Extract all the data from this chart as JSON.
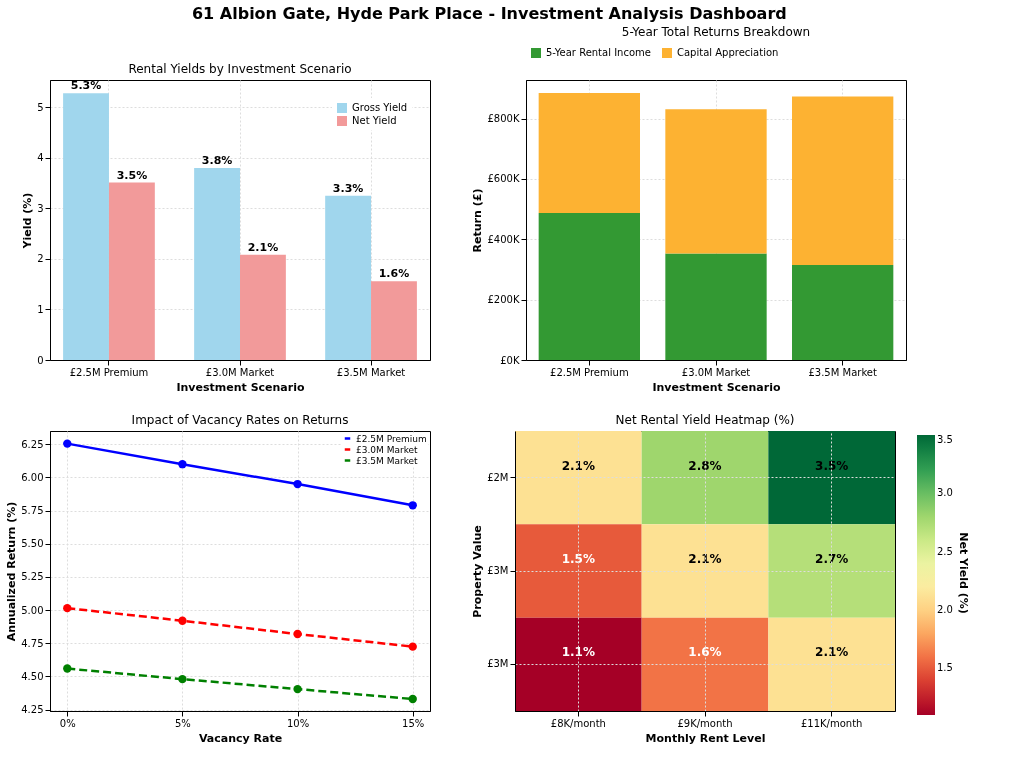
{
  "chart_data": [
    {
      "type": "bar",
      "title": "Rental Yields by Investment Scenario",
      "xlabel": "Investment Scenario",
      "ylabel": "Yield (%)",
      "annotations": [
        "61 Albion Gate, Hyde Park Place - Investment Analysis Dashboard"
      ],
      "categories": [
        "£2.5M Premium",
        "£3.0M Market",
        "£3.5M Market"
      ],
      "series": [
        {
          "name": "Gross Yield",
          "color": "#a0d6ed",
          "values": [
            5.28,
            3.8,
            3.25
          ],
          "value_labels": [
            "5.3%",
            "3.8%",
            "3.3%"
          ]
        },
        {
          "name": "Net Yield",
          "color": "#f29a9a",
          "values": [
            3.51,
            2.08,
            1.56
          ],
          "value_labels": [
            "3.5%",
            "2.1%",
            "1.6%"
          ]
        }
      ],
      "ylim": [
        0,
        5.54
      ],
      "yticks": [
        0,
        1,
        2,
        3,
        4,
        5
      ],
      "grid": true,
      "legend": "top right"
    },
    {
      "type": "bar",
      "stacked": true,
      "title": "5-Year Total Returns Breakdown",
      "xlabel": "Investment Scenario",
      "ylabel": "Return (£)",
      "categories": [
        "£2.5M Premium",
        "£3.0M Market",
        "£3.5M Market"
      ],
      "series": [
        {
          "name": "5-Year Rental Income",
          "color": "#339933",
          "values": [
            487000,
            353000,
            315000
          ]
        },
        {
          "name": "Capital Appreciation",
          "color": "#fdb232",
          "values": [
            398000,
            478000,
            558000
          ]
        }
      ],
      "ylim": [
        0,
        928000
      ],
      "yticks": [
        {
          "value": 0,
          "label": "£0K"
        },
        {
          "value": 200000,
          "label": "£200K"
        },
        {
          "value": 400000,
          "label": "£400K"
        },
        {
          "value": 600000,
          "label": "£600K"
        },
        {
          "value": 800000,
          "label": "£800K"
        }
      ],
      "grid": true,
      "legend": "top"
    },
    {
      "type": "line",
      "title": "Impact of Vacancy Rates on Returns",
      "xlabel": "Vacancy Rate",
      "ylabel": "Annualized Return (%)",
      "x": [
        0,
        5,
        10,
        15
      ],
      "series": [
        {
          "name": "£2.5M Premium",
          "color": "#0000ff",
          "line_style": "solid",
          "values": [
            6.255,
            6.1,
            5.95,
            5.79
          ]
        },
        {
          "name": "£3.0M Market",
          "color": "#ff0000",
          "line_style": "dashed",
          "values": [
            5.015,
            4.92,
            4.82,
            4.725
          ]
        },
        {
          "name": "£3.5M Market",
          "color": "#008000",
          "line_style": "dashed",
          "values": [
            4.56,
            4.48,
            4.405,
            4.33
          ]
        }
      ],
      "xlim": [
        -0.75,
        15.75
      ],
      "xticks": [
        {
          "value": 0,
          "label": "0%"
        },
        {
          "value": 5,
          "label": "5%"
        },
        {
          "value": 10,
          "label": "10%"
        },
        {
          "value": 15,
          "label": "15%"
        }
      ],
      "ylim": [
        4.24,
        6.35
      ],
      "yticks": [
        {
          "value": 4.25,
          "label": "4.25"
        },
        {
          "value": 4.5,
          "label": "4.50"
        },
        {
          "value": 4.75,
          "label": "4.75"
        },
        {
          "value": 5,
          "label": "5.00"
        },
        {
          "value": 5.25,
          "label": "5.25"
        },
        {
          "value": 5.5,
          "label": "5.50"
        },
        {
          "value": 5.75,
          "label": "5.75"
        },
        {
          "value": 6,
          "label": "6.00"
        },
        {
          "value": 6.25,
          "label": "6.25"
        }
      ],
      "grid": true,
      "legend": "top right",
      "marker": "circle"
    },
    {
      "type": "heatmap",
      "title": "Net Rental Yield Heatmap (%)",
      "xlabel": "Monthly Rent Level",
      "ylabel": "Property Value",
      "clabel": "Net Yield (%)",
      "categories": [
        "£8K/month",
        "£9K/month",
        "£11K/month"
      ],
      "y_categories": [
        "£2M",
        "£3M",
        "£3M"
      ],
      "cells": [
        [
          2.1,
          2.8,
          3.5
        ],
        [
          1.5,
          2.1,
          2.7
        ],
        [
          1.1,
          1.6,
          2.1
        ]
      ],
      "cell_labels": [
        [
          "2.1%",
          "2.8%",
          "3.5%"
        ],
        [
          "1.5%",
          "2.1%",
          "2.7%"
        ],
        [
          "1.1%",
          "1.6%",
          "2.1%"
        ]
      ],
      "clim": [
        1.1,
        3.5
      ],
      "cticks": [
        {
          "value": 1.5,
          "label": "1.5"
        },
        {
          "value": 2,
          "label": "2.0"
        },
        {
          "value": 2.5,
          "label": "2.5"
        },
        {
          "value": 3,
          "label": "3.0"
        },
        {
          "value": 3.5,
          "label": "3.5"
        }
      ],
      "grid": true
    }
  ]
}
